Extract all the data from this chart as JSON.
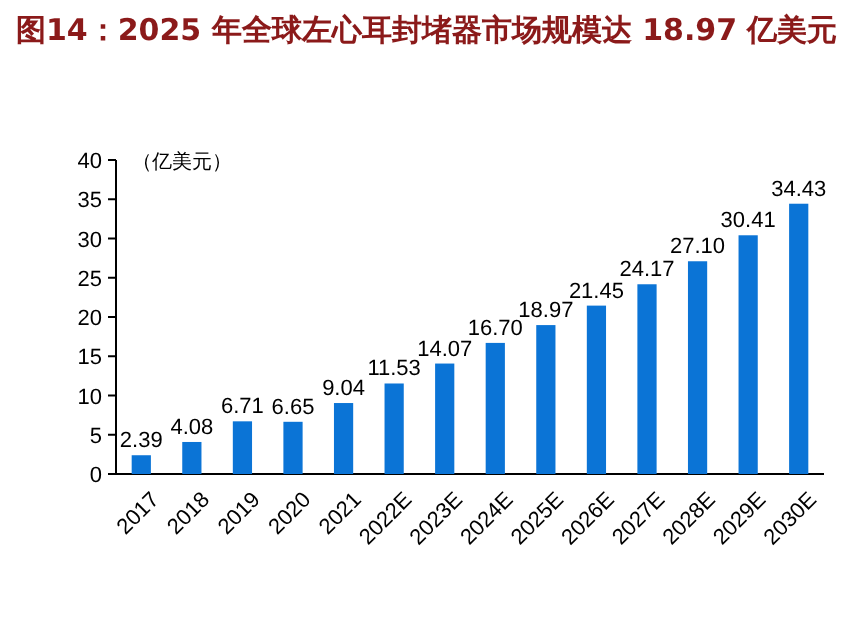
{
  "chart_data": {
    "type": "bar",
    "title": "图14：2025 年全球左心耳封堵器市场规模达 18.97 亿美元",
    "ylabel": "（亿美元）",
    "categories": [
      "2017",
      "2018",
      "2019",
      "2020",
      "2021",
      "2022E",
      "2023E",
      "2024E",
      "2025E",
      "2026E",
      "2027E",
      "2028E",
      "2029E",
      "2030E"
    ],
    "values": [
      2.39,
      4.08,
      6.71,
      6.65,
      9.04,
      11.53,
      14.07,
      16.7,
      18.97,
      21.45,
      24.17,
      27.1,
      30.41,
      34.43
    ],
    "value_labels": [
      "2.39",
      "4.08",
      "6.71",
      "6.65",
      "9.04",
      "11.53",
      "14.07",
      "16.70",
      "18.97",
      "21.45",
      "24.17",
      "27.10",
      "30.41",
      "34.43"
    ],
    "color": "#0b74d6",
    "ylim": [
      0,
      40
    ],
    "yticks": [
      0,
      5,
      10,
      15,
      20,
      25,
      30,
      35,
      40
    ]
  }
}
